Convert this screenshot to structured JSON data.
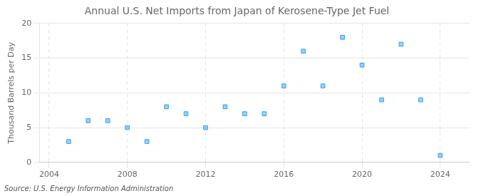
{
  "chart_data": {
    "type": "scatter",
    "title": "Annual U.S. Net Imports from Japan of Kerosene-Type Jet Fuel",
    "ylabel": "Thousand Barrels per Day",
    "annotations": [
      "Source: U.S. Energy Information Administration"
    ],
    "x": [
      2005,
      2006,
      2007,
      2008,
      2009,
      2010,
      2011,
      2012,
      2013,
      2014,
      2015,
      2016,
      2017,
      2018,
      2019,
      2020,
      2021,
      2022,
      2023,
      2024
    ],
    "values": [
      3,
      6,
      6,
      5,
      3,
      8,
      7,
      5,
      8,
      7,
      7,
      11,
      16,
      11,
      18,
      14,
      9,
      17,
      9,
      1
    ],
    "marker": "square",
    "xlim": [
      2003.5,
      2025.5
    ],
    "xticks": [
      2004,
      2008,
      2012,
      2016,
      2020,
      2024
    ],
    "ylim": [
      0,
      20
    ],
    "yticks": [
      0,
      5,
      10,
      15,
      20
    ],
    "grid": true
  }
}
